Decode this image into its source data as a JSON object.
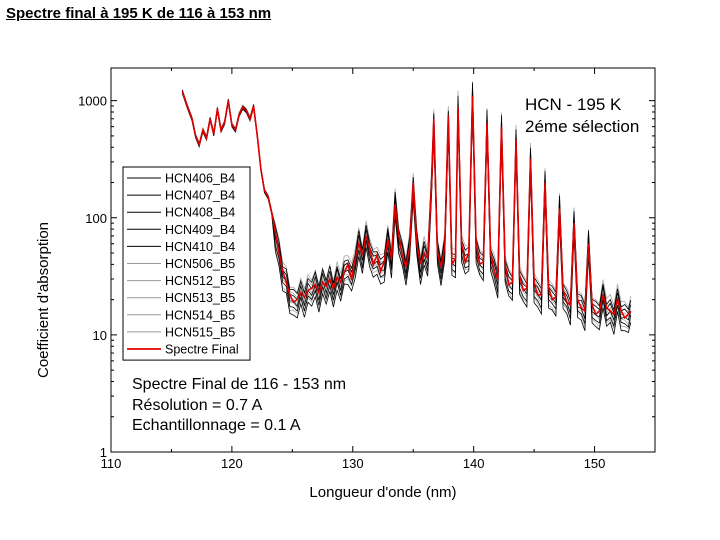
{
  "page": {
    "title": "Spectre final à 195 K de 116 à 153 nm"
  },
  "chart_data": {
    "type": "line",
    "xlabel": "Longueur d'onde (nm)",
    "ylabel": "Coefficient d'absorption",
    "xlim": [
      110,
      155
    ],
    "ylim": [
      1,
      1900
    ],
    "yscale": "log",
    "x_ticks": [
      110,
      120,
      130,
      140,
      150
    ],
    "x_tick_labels": [
      "110",
      "120",
      "130",
      "140",
      "150"
    ],
    "y_ticks": [
      1,
      10,
      100,
      1000
    ],
    "y_tick_labels": [
      "1",
      "10",
      "100",
      "1000"
    ],
    "annotation_title": [
      "HCN - 195 K",
      "2éme sélection"
    ],
    "annotation_lines": [
      "Spectre Final de 116 - 153 nm",
      "Résolution = 0.7 A",
      "Echantillonnage  = 0.1 A"
    ],
    "legend": [
      {
        "name": "HCN406_B4",
        "color": "#000000"
      },
      {
        "name": "HCN407_B4",
        "color": "#000000"
      },
      {
        "name": "HCN408_B4",
        "color": "#000000"
      },
      {
        "name": "HCN409_B4",
        "color": "#000000"
      },
      {
        "name": "HCN410_B4",
        "color": "#000000"
      },
      {
        "name": "HCN506_B5",
        "color": "#9a9a9a"
      },
      {
        "name": "HCN512_B5",
        "color": "#9a9a9a"
      },
      {
        "name": "HCN513_B5",
        "color": "#9a9a9a"
      },
      {
        "name": "HCN514_B5",
        "color": "#9a9a9a"
      },
      {
        "name": "HCN515_B5",
        "color": "#9a9a9a"
      },
      {
        "name": "Spectre Final",
        "color": "#e00000"
      }
    ],
    "final_spectrum": {
      "name": "Spectre Final",
      "x": [
        115.9,
        116.3,
        116.7,
        117.0,
        117.3,
        117.6,
        117.9,
        118.2,
        118.5,
        118.8,
        119.1,
        119.4,
        119.7,
        120.0,
        120.3,
        120.6,
        120.9,
        121.2,
        121.5,
        121.8,
        122.1,
        122.4,
        122.7,
        123.0,
        123.3,
        123.6,
        123.9,
        124.2,
        124.5,
        124.8,
        125.1,
        125.4,
        125.7,
        126.0,
        126.3,
        126.6,
        126.9,
        127.2,
        127.5,
        127.8,
        128.1,
        128.4,
        128.7,
        129.0,
        129.3,
        129.6,
        129.9,
        130.2,
        130.5,
        130.8,
        131.1,
        131.4,
        131.7,
        132.0,
        132.3,
        132.6,
        132.9,
        133.2,
        133.5,
        133.8,
        134.1,
        134.4,
        134.7,
        135.0,
        135.3,
        135.6,
        135.9,
        136.2,
        136.5,
        136.7,
        137.0,
        137.3,
        137.6,
        137.9,
        138.2,
        138.5,
        138.7,
        139.0,
        139.3,
        139.6,
        139.9,
        140.2,
        140.5,
        140.8,
        141.1,
        141.4,
        141.7,
        142.0,
        142.3,
        142.6,
        142.9,
        143.2,
        143.5,
        143.8,
        144.1,
        144.4,
        144.7,
        145.0,
        145.3,
        145.6,
        145.9,
        146.2,
        146.5,
        146.8,
        147.1,
        147.4,
        147.7,
        148.0,
        148.3,
        148.6,
        148.9,
        149.2,
        149.5,
        149.8,
        150.1,
        150.4,
        150.7,
        151.0,
        151.3,
        151.6,
        151.9,
        152.2,
        152.5,
        152.8,
        153.0
      ],
      "y": [
        1200,
        900,
        700,
        500,
        420,
        560,
        480,
        700,
        520,
        850,
        560,
        650,
        1000,
        620,
        560,
        760,
        880,
        820,
        700,
        900,
        500,
        260,
        170,
        150,
        110,
        75,
        50,
        35,
        28,
        22,
        19,
        20,
        23,
        21,
        24,
        25,
        27,
        23,
        28,
        26,
        30,
        25,
        31,
        28,
        34,
        40,
        30,
        45,
        60,
        48,
        70,
        55,
        40,
        48,
        35,
        42,
        65,
        45,
        130,
        70,
        48,
        38,
        55,
        200,
        60,
        40,
        50,
        45,
        180,
        700,
        50,
        38,
        55,
        750,
        40,
        45,
        880,
        60,
        42,
        50,
        1100,
        60,
        40,
        42,
        650,
        50,
        35,
        30,
        600,
        40,
        27,
        28,
        460,
        32,
        24,
        25,
        320,
        28,
        22,
        22,
        200,
        25,
        20,
        21,
        120,
        24,
        19,
        18,
        90,
        20,
        17,
        16,
        60,
        18,
        15,
        16,
        22,
        17,
        16,
        15,
        20,
        16,
        14,
        15,
        16
      ]
    },
    "black_variation": [
      1.05,
      1.08,
      1.05,
      1.1,
      1.06,
      1.09,
      1.07,
      1.05,
      1.1,
      1.06,
      1.08,
      1.05,
      1.09,
      1.1,
      1.07,
      1.05,
      1.06,
      1.08,
      1.1,
      1.07,
      1.05,
      1.06,
      1.09,
      1.08,
      1.05,
      1.06,
      1.07,
      1.05,
      1.06,
      1.08,
      1.1,
      1.07,
      1.09,
      1.05,
      1.06,
      1.08,
      1.07
    ],
    "black_scales": [
      1.18,
      1.08,
      0.94,
      0.84,
      0.74
    ],
    "gray_scales": [
      1.26,
      1.12,
      1.0,
      0.9,
      0.8
    ]
  }
}
